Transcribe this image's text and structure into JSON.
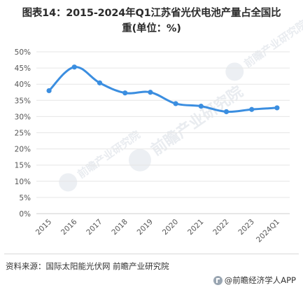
{
  "title_line1": "图表14：2015-2024年Q1江苏省光伏电池产量占全国比",
  "title_line2": "重(单位：%)",
  "source": "资料来源：国际太阳能光伏网 前瞻产业研究院",
  "brand": "@前瞻经济学人APP",
  "watermark": "前瞻产业研究院",
  "colors": {
    "line": "#3b8ee0",
    "grid": "#e6e6e6",
    "axis_text": "#555555"
  },
  "chart_data": {
    "type": "line",
    "categories": [
      "2015",
      "2016",
      "2017",
      "2018",
      "2019",
      "2020",
      "2021",
      "2022",
      "2023",
      "2024Q1"
    ],
    "values": [
      38.0,
      45.3,
      40.4,
      37.3,
      37.5,
      34.0,
      33.2,
      31.5,
      32.2,
      32.7
    ],
    "ylim": [
      0,
      50
    ],
    "yticks": [
      "0%",
      "5%",
      "10%",
      "15%",
      "20%",
      "25%",
      "30%",
      "35%",
      "40%",
      "45%",
      "50%"
    ],
    "ytick_values": [
      0,
      5,
      10,
      15,
      20,
      25,
      30,
      35,
      40,
      45,
      50
    ],
    "grid": true,
    "legend": "none"
  }
}
